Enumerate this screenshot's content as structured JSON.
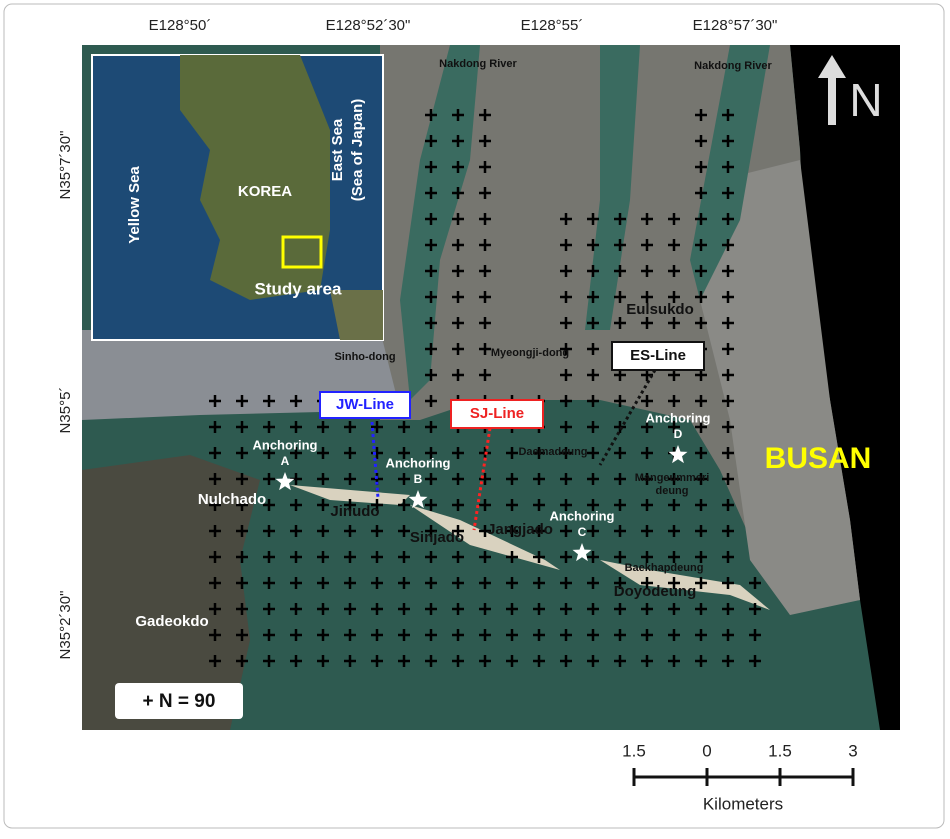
{
  "axes": {
    "longitude": [
      "E128°50´",
      "E128°52´30\"",
      "E128°55´",
      "E128°57´30\""
    ],
    "latitude": [
      "N35°7´30\"",
      "N35°5´",
      "N35°2´30\""
    ]
  },
  "inset": {
    "yellow_sea": "Yellow Sea",
    "korea": "KOREA",
    "east_sea": [
      "East Sea",
      "(Sea of Japan)"
    ],
    "study_area": "Study area"
  },
  "places": {
    "nakdong_river_1": "Nakdong River",
    "nakdong_river_2": "Nakdong River",
    "sinho_dong": "Sinho-dong",
    "myeongji_dong": "Myeongji-dong",
    "eulsukdo": "Eulsukdo",
    "busan": "BUSAN",
    "nulchado": "Nulchado",
    "jinudo": "Jinudo",
    "sinjado": "Sinjado",
    "jangjado": "Jangjado",
    "daemadeung": "Daemadeung",
    "mangeummeri": [
      "Mangeummeri",
      "deung"
    ],
    "baekhapdeung": "Baekhapdeung",
    "doyodeung": "Doyodeung",
    "gadeokdo": "Gadeokdo"
  },
  "lines": {
    "jw": "JW-Line",
    "sj": "SJ-Line",
    "es": "ES-Line"
  },
  "anchoring": {
    "label": "Anchoring",
    "stations": [
      "A",
      "B",
      "C",
      "D"
    ]
  },
  "legend": "+ N = 90",
  "north": "N",
  "scale": {
    "ticks": [
      "1.5",
      "0",
      "1.5",
      "3"
    ],
    "unit": "Kilometers"
  }
}
